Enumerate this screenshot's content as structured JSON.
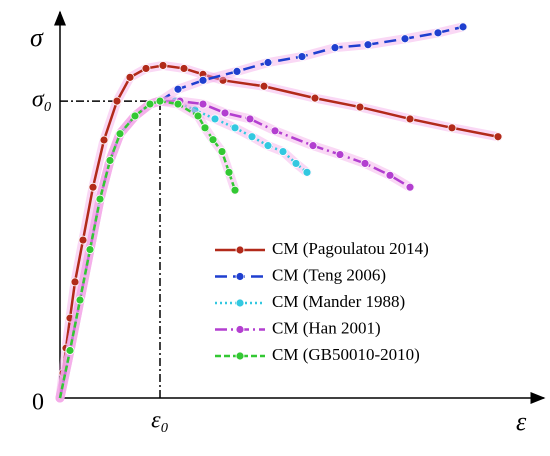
{
  "chart_data": {
    "type": "line",
    "x_label": "ε",
    "y_label": "σ",
    "xlim": [
      0,
      4.8
    ],
    "ylim": [
      0,
      1.29
    ],
    "xticks": [
      {
        "value": 0,
        "label": "0"
      },
      {
        "value": 1,
        "label": "ε₀"
      }
    ],
    "yticks": [
      {
        "value": 1,
        "label": "σ₀"
      }
    ],
    "legend": "lower right",
    "series": [
      {
        "name": "CM (Pagoulatou 2014)",
        "color": "#b22a1a",
        "x": [
          0,
          0.03,
          0.06,
          0.1,
          0.15,
          0.23,
          0.33,
          0.44,
          0.57,
          0.7,
          0.86,
          1.03,
          1.24,
          1.43,
          1.63,
          2.04,
          2.55,
          3.0,
          3.5,
          3.92,
          4.38
        ],
        "values": [
          0,
          0.084,
          0.168,
          0.269,
          0.391,
          0.532,
          0.71,
          0.869,
          1.0,
          1.08,
          1.11,
          1.12,
          1.11,
          1.09,
          1.07,
          1.05,
          1.01,
          0.98,
          0.94,
          0.91,
          0.88
        ]
      },
      {
        "name": "CM (Teng 2006)",
        "color": "#1f3fcf",
        "x": [
          0,
          0.1,
          0.2,
          0.3,
          0.4,
          0.5,
          0.6,
          0.75,
          0.9,
          1.0,
          1.18,
          1.43,
          1.77,
          2.08,
          2.42,
          2.75,
          3.08,
          3.45,
          3.78,
          4.03
        ],
        "values": [
          0,
          0.16,
          0.33,
          0.5,
          0.67,
          0.8,
          0.89,
          0.95,
          0.99,
          1.0,
          1.04,
          1.07,
          1.1,
          1.13,
          1.15,
          1.18,
          1.19,
          1.21,
          1.23,
          1.25
        ]
      },
      {
        "name": "CM (Mander 1988)",
        "color": "#33c8e0",
        "x": [
          0,
          0.1,
          0.2,
          0.3,
          0.4,
          0.5,
          0.6,
          0.75,
          0.9,
          1.0,
          1.15,
          1.35,
          1.55,
          1.75,
          1.92,
          2.08,
          2.23,
          2.36,
          2.47
        ],
        "values": [
          0,
          0.16,
          0.33,
          0.5,
          0.67,
          0.8,
          0.89,
          0.95,
          0.99,
          1.0,
          1.0,
          0.97,
          0.94,
          0.91,
          0.88,
          0.85,
          0.83,
          0.79,
          0.76
        ]
      },
      {
        "name": "CM (Han 2001)",
        "color": "#b33fd0",
        "x": [
          0,
          0.1,
          0.2,
          0.3,
          0.4,
          0.5,
          0.6,
          0.75,
          0.9,
          1.0,
          1.2,
          1.43,
          1.65,
          1.9,
          2.15,
          2.53,
          2.8,
          3.05,
          3.3,
          3.5
        ],
        "values": [
          0,
          0.16,
          0.33,
          0.5,
          0.67,
          0.8,
          0.89,
          0.95,
          0.99,
          1.0,
          1.0,
          0.99,
          0.96,
          0.94,
          0.9,
          0.85,
          0.82,
          0.79,
          0.75,
          0.71
        ]
      },
      {
        "name": "CM (GB50010-2010)",
        "color": "#33c833",
        "x": [
          0,
          0.1,
          0.2,
          0.3,
          0.4,
          0.5,
          0.6,
          0.75,
          0.9,
          1.0,
          1.18,
          1.38,
          1.45,
          1.53,
          1.62,
          1.69,
          1.75
        ],
        "values": [
          0,
          0.16,
          0.33,
          0.5,
          0.67,
          0.8,
          0.89,
          0.95,
          0.99,
          1.0,
          0.99,
          0.95,
          0.91,
          0.87,
          0.83,
          0.76,
          0.7
        ]
      }
    ]
  }
}
